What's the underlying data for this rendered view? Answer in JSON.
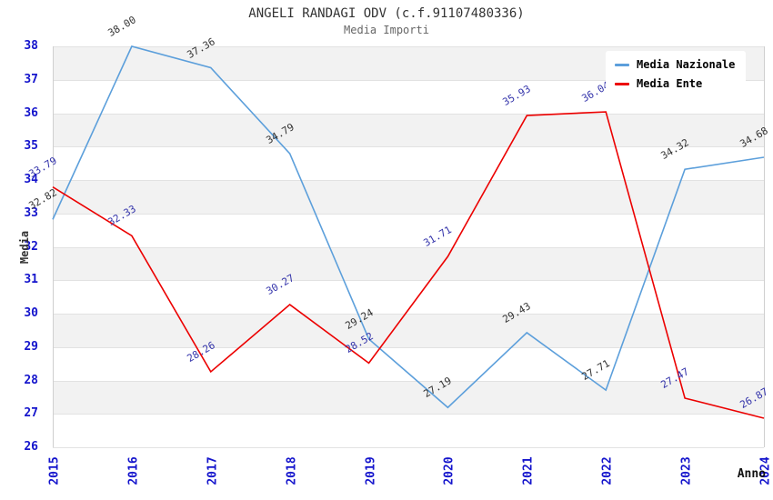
{
  "header": {
    "title": "ANGELI RANDAGI ODV (c.f.91107480336)",
    "subtitle": "Media Importi"
  },
  "axes": {
    "y_label": "Media",
    "x_label": "Anno",
    "y_min": 26,
    "y_max": 38,
    "y_tick_step": 1
  },
  "legend": {
    "items": [
      {
        "label": "Media Nazionale",
        "color": "#5c9fdb"
      },
      {
        "label": "Media Ente",
        "color": "#ec0000"
      }
    ]
  },
  "chart_data": {
    "type": "line",
    "title": "ANGELI RANDAGI ODV (c.f.91107480336)",
    "subtitle": "Media Importi",
    "xlabel": "Anno",
    "ylabel": "Media",
    "ylim": [
      26,
      38
    ],
    "grid": "horizontal gridlines with alternating gray bands",
    "legend_position": "top-right inside plot",
    "categories": [
      "2015",
      "2016",
      "2017",
      "2018",
      "2019",
      "2020",
      "2021",
      "2022",
      "2023",
      "2024"
    ],
    "series": [
      {
        "name": "Media Nazionale",
        "color": "#5c9fdb",
        "label_color": "#333333",
        "values": [
          32.82,
          38.0,
          37.36,
          34.79,
          29.24,
          27.19,
          29.43,
          27.71,
          34.32,
          34.68
        ]
      },
      {
        "name": "Media Ente",
        "color": "#ec0000",
        "label_color": "#3333aa",
        "values": [
          33.79,
          32.33,
          28.26,
          30.27,
          28.52,
          31.71,
          35.93,
          36.04,
          27.47,
          26.87
        ]
      }
    ]
  },
  "colors": {
    "band": "#f2f2f2",
    "gridline": "#e2e2e2",
    "axis_border": "#cfcfcf",
    "tick_text": "#1414cc",
    "title_text": "#333333",
    "subtitle_text": "#666666"
  }
}
